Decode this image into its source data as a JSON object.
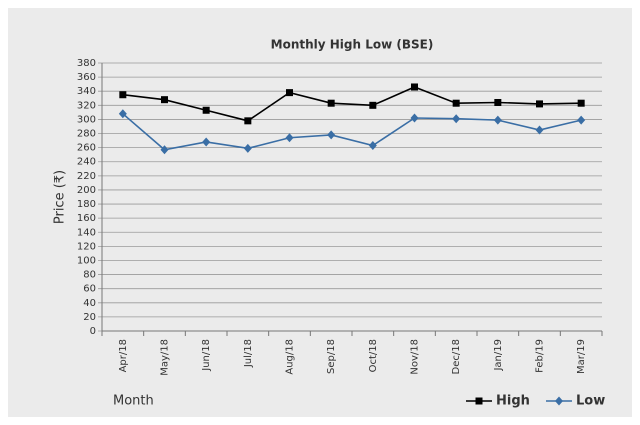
{
  "chart_data": {
    "type": "line",
    "title": "Monthly High Low (BSE)",
    "y_label": "Price (₹)",
    "x_label": "Month",
    "categories": [
      "Apr/18",
      "May/18",
      "Jun/18",
      "Jul/18",
      "Aug/18",
      "Sep/18",
      "Oct/18",
      "Nov/18",
      "Dec/18",
      "Jan/19",
      "Feb/19",
      "Mar/19"
    ],
    "series": [
      {
        "name": "High",
        "color": "#000000",
        "marker": "square",
        "values": [
          335,
          328,
          313,
          298,
          338,
          323,
          320,
          346,
          323,
          324,
          322,
          323
        ]
      },
      {
        "name": "Low",
        "color": "#3a6ea5",
        "marker": "diamond",
        "values": [
          308,
          257,
          268,
          259,
          274,
          278,
          263,
          302,
          301,
          299,
          285,
          299
        ]
      }
    ],
    "ylim": [
      0,
      380
    ],
    "yticks": [
      0,
      20,
      40,
      60,
      80,
      100,
      120,
      140,
      160,
      180,
      200,
      220,
      240,
      260,
      280,
      300,
      320,
      340,
      360,
      380
    ],
    "grid": true,
    "legend": "bottom-right"
  }
}
